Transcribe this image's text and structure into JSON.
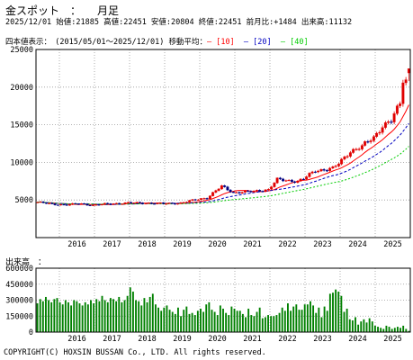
{
  "header": {
    "title": "金スポット　：　　月足",
    "info": "2025/12/01 始値:21885 高値:22451 安値:20804 終値:22451 前月比:+1484 出来高:11132"
  },
  "legend": {
    "period": "四本値表示：　(2015/05/01～2025/12/01) 移動平均：",
    "ma10": "[10]",
    "ma20": "[20]",
    "ma40": "[40]",
    "colors": {
      "ma10": "#ff0000",
      "ma20": "#0000c0",
      "ma40": "#00cc00"
    }
  },
  "volume_title": "出来高　：",
  "copyright": "COPYRIGHT(C) HOXSIN BUSSAN Co., LTD. All rights reserved.",
  "chart_data": [
    {
      "type": "candlestick",
      "title": "金スポット 月足",
      "x_start": "2015-05",
      "x_end": "2025-12",
      "x_ticks": [
        "2016",
        "2017",
        "2018",
        "2019",
        "2020",
        "2021",
        "2022",
        "2023",
        "2024",
        "2025"
      ],
      "y_ticks": [
        "5000",
        "10000",
        "15000",
        "20000",
        "25000"
      ],
      "ylim": [
        0,
        25000
      ],
      "grid": true,
      "close_anchors": [
        [
          "2015-05",
          4700
        ],
        [
          "2015-10",
          4450
        ],
        [
          "2016-03",
          4350
        ],
        [
          "2016-08",
          4500
        ],
        [
          "2016-12",
          4300
        ],
        [
          "2017-06",
          4500
        ],
        [
          "2017-12",
          4600
        ],
        [
          "2018-06",
          4600
        ],
        [
          "2018-12",
          4500
        ],
        [
          "2019-06",
          4600
        ],
        [
          "2019-12",
          5100
        ],
        [
          "2020-03",
          5300
        ],
        [
          "2020-08",
          6800
        ],
        [
          "2020-12",
          6000
        ],
        [
          "2021-06",
          6100
        ],
        [
          "2021-12",
          6400
        ],
        [
          "2022-03",
          7700
        ],
        [
          "2022-06",
          7600
        ],
        [
          "2022-10",
          7500
        ],
        [
          "2022-12",
          7800
        ],
        [
          "2023-04",
          8900
        ],
        [
          "2023-10",
          9200
        ],
        [
          "2023-12",
          9800
        ],
        [
          "2024-04",
          11500
        ],
        [
          "2024-08",
          12100
        ],
        [
          "2024-12",
          13300
        ],
        [
          "2025-03",
          14900
        ],
        [
          "2025-06",
          15500
        ],
        [
          "2025-09",
          17800
        ],
        [
          "2025-10",
          20967
        ],
        [
          "2025-11",
          20967
        ],
        [
          "2025-12",
          22451
        ]
      ],
      "last_candle": {
        "date": "2025-12",
        "open": 21885,
        "high": 22451,
        "low": 20804,
        "close": 22451
      },
      "moving_averages": [
        {
          "name": "10",
          "color": "#ff0000"
        },
        {
          "name": "20",
          "color": "#0000c0"
        },
        {
          "name": "40",
          "color": "#00cc00"
        }
      ]
    },
    {
      "type": "bar",
      "title": "出来高",
      "x_start": "2015-05",
      "x_end": "2025-12",
      "y_ticks": [
        "0",
        "150000",
        "300000",
        "450000",
        "600000"
      ],
      "ylim": [
        0,
        600000
      ],
      "values": [
        270000,
        310000,
        290000,
        330000,
        300000,
        280000,
        310000,
        320000,
        280000,
        260000,
        300000,
        280000,
        250000,
        300000,
        290000,
        270000,
        250000,
        280000,
        260000,
        300000,
        270000,
        310000,
        290000,
        340000,
        300000,
        280000,
        320000,
        310000,
        290000,
        330000,
        280000,
        300000,
        340000,
        420000,
        380000,
        300000,
        290000,
        250000,
        320000,
        280000,
        330000,
        360000,
        260000,
        230000,
        200000,
        230000,
        250000,
        210000,
        190000,
        170000,
        230000,
        150000,
        210000,
        240000,
        170000,
        180000,
        160000,
        200000,
        220000,
        190000,
        260000,
        280000,
        210000,
        190000,
        160000,
        250000,
        220000,
        180000,
        160000,
        240000,
        220000,
        200000,
        200000,
        170000,
        140000,
        220000,
        160000,
        150000,
        190000,
        230000,
        130000,
        140000,
        160000,
        150000,
        150000,
        160000,
        180000,
        230000,
        200000,
        270000,
        200000,
        240000,
        260000,
        210000,
        210000,
        260000,
        260000,
        290000,
        250000,
        180000,
        230000,
        140000,
        240000,
        200000,
        360000,
        370000,
        400000,
        380000,
        340000,
        190000,
        220000,
        120000,
        110000,
        140000,
        70000,
        100000,
        120000,
        90000,
        130000,
        100000,
        60000,
        50000,
        40000,
        30000,
        60000,
        50000,
        30000,
        40000,
        50000,
        40000,
        60000,
        30000,
        11132
      ]
    }
  ]
}
